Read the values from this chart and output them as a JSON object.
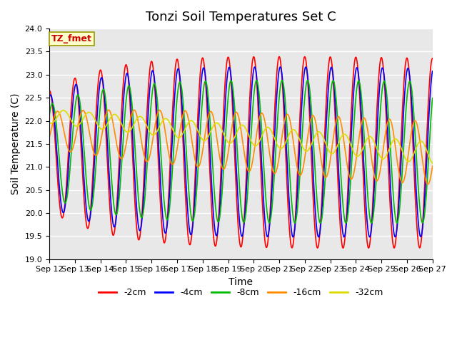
{
  "title": "Tonzi Soil Temperatures Set C",
  "xlabel": "Time",
  "ylabel": "Soil Temperature (C)",
  "ylim": [
    19.0,
    24.0
  ],
  "yticks": [
    19.0,
    19.5,
    20.0,
    20.5,
    21.0,
    21.5,
    22.0,
    22.5,
    23.0,
    23.5,
    24.0
  ],
  "xtick_labels": [
    "Sep 12",
    "Sep 13",
    "Sep 14",
    "Sep 15",
    "Sep 16",
    "Sep 17",
    "Sep 18",
    "Sep 19",
    "Sep 20",
    "Sep 21",
    "Sep 22",
    "Sep 23",
    "Sep 24",
    "Sep 25",
    "Sep 26",
    "Sep 27"
  ],
  "annotation_text": "TZ_fmet",
  "annotation_bg": "#FFFFCC",
  "annotation_fg": "#CC0000",
  "annotation_edge": "#999900",
  "line_colors": [
    "#FF0000",
    "#0000FF",
    "#00BB00",
    "#FF8C00",
    "#DDDD00"
  ],
  "line_labels": [
    "-2cm",
    "-4cm",
    "-8cm",
    "-16cm",
    "-32cm"
  ],
  "bg_color": "#E8E8E8",
  "fig_bg": "#FFFFFF",
  "title_fontsize": 13,
  "label_fontsize": 10,
  "tick_fontsize": 8
}
